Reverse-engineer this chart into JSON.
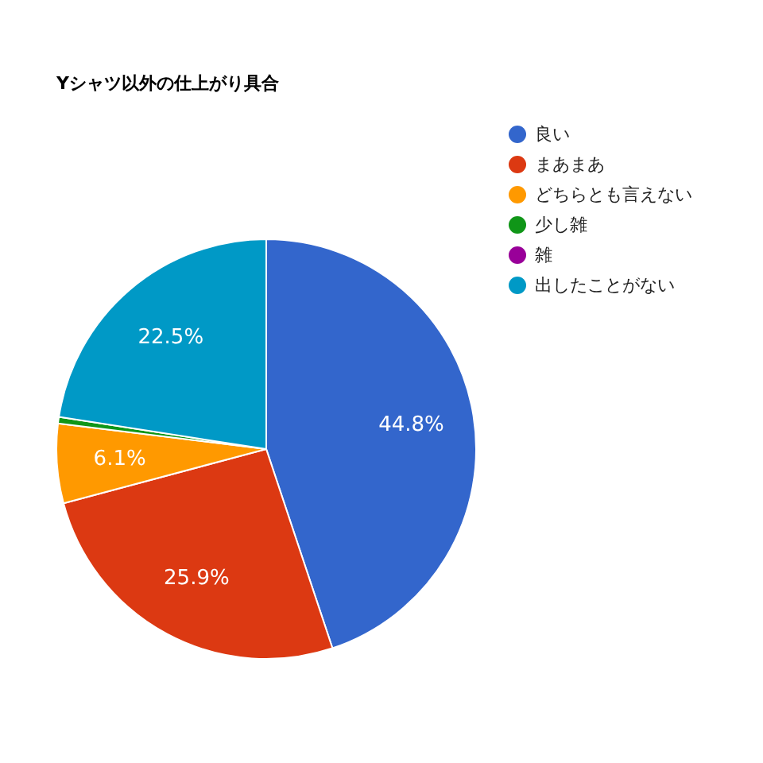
{
  "chart_data": {
    "type": "pie",
    "title": "Yシャツ以外の仕上がり具合",
    "categories": [
      "良い",
      "まあまあ",
      "どちらとも言えない",
      "少し雑",
      "雑",
      "出したことがない"
    ],
    "values": [
      44.8,
      25.9,
      6.1,
      0.5,
      null,
      22.5
    ],
    "colors": [
      "#3366cc",
      "#dc3912",
      "#ff9900",
      "#109618",
      "#990099",
      "#0099c6"
    ],
    "value_labels": [
      "44.8%",
      "25.9%",
      "6.1%",
      null,
      null,
      "22.5%"
    ],
    "legend": "right"
  }
}
